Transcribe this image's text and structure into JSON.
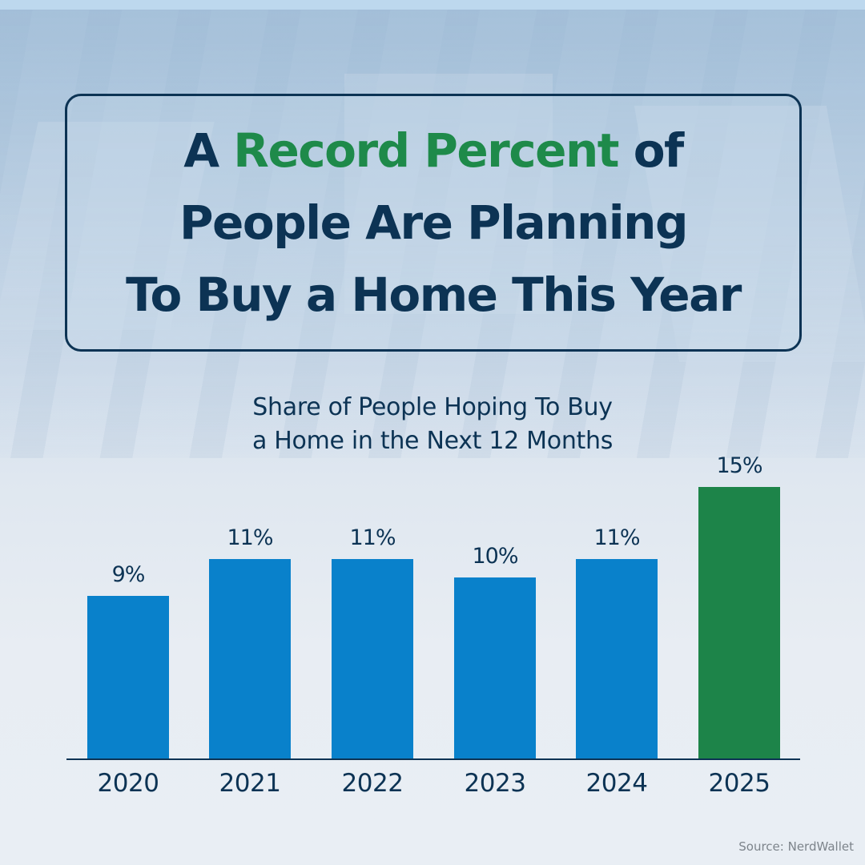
{
  "header": {
    "title_line1_pre": "A ",
    "title_line1_accent": "Record Percent",
    "title_line1_post": " of",
    "title_line2": "People Are Planning",
    "title_line3": "To Buy a Home This Year"
  },
  "colors": {
    "navy": "#0c3354",
    "accent_green": "#1e8a4a",
    "bar_blue": "#0981cb",
    "bar_green": "#1d8449"
  },
  "source": "Source: NerdWallet",
  "chart_data": {
    "type": "bar",
    "title": "Share of People Hoping To Buy a Home in the Next 12 Months",
    "title_lines": [
      "Share of People Hoping To Buy",
      "a Home in the Next 12 Months"
    ],
    "categories": [
      "2020",
      "2021",
      "2022",
      "2023",
      "2024",
      "2025"
    ],
    "values": [
      9,
      11,
      11,
      10,
      11,
      15
    ],
    "labels": [
      "9%",
      "11%",
      "11%",
      "10%",
      "11%",
      "15%"
    ],
    "highlight_index": 5,
    "xlabel": "",
    "ylabel": "",
    "ylim": [
      0,
      16
    ],
    "grid": false,
    "legend": null
  }
}
